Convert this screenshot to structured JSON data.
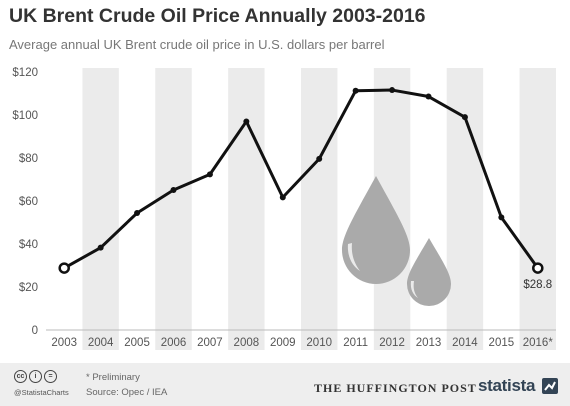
{
  "title": "UK Brent Crude Oil Price Annually 2003-2016",
  "subtitle": "Average annual UK Brent crude oil price in U.S. dollars per barrel",
  "chart_data": {
    "type": "line",
    "categories": [
      "2003",
      "2004",
      "2005",
      "2006",
      "2007",
      "2008",
      "2009",
      "2010",
      "2011",
      "2012",
      "2013",
      "2014",
      "2015",
      "2016*"
    ],
    "series": [
      {
        "values": [
          28.8,
          38.3,
          54.4,
          65.1,
          72.4,
          97.0,
          61.7,
          79.6,
          111.3,
          111.6,
          108.6,
          99.0,
          52.4,
          28.8
        ]
      }
    ],
    "ylim": [
      0,
      120
    ],
    "yticks": [
      0,
      20,
      40,
      60,
      80,
      100,
      120
    ],
    "ytick_labels": [
      "0",
      "$20",
      "$40",
      "$60",
      "$80",
      "$100",
      "$120"
    ],
    "annotation": {
      "category": "2016*",
      "label": "$28.8"
    },
    "alternating_column_shading": true,
    "grid": false,
    "line_color": "#111111",
    "shade_color": "#ebebeb",
    "drop_color": "#aaaaaa"
  },
  "footer": {
    "license_icons": [
      "cc-icon",
      "person-icon",
      "equals-icon"
    ],
    "license_glyphs": [
      "cc",
      "i",
      "="
    ],
    "handle": "@StatistaCharts",
    "note": "* Preliminary",
    "source": "Source: Opec / IEA",
    "partner": "THE HUFFINGTON POST",
    "brand": "statista"
  }
}
